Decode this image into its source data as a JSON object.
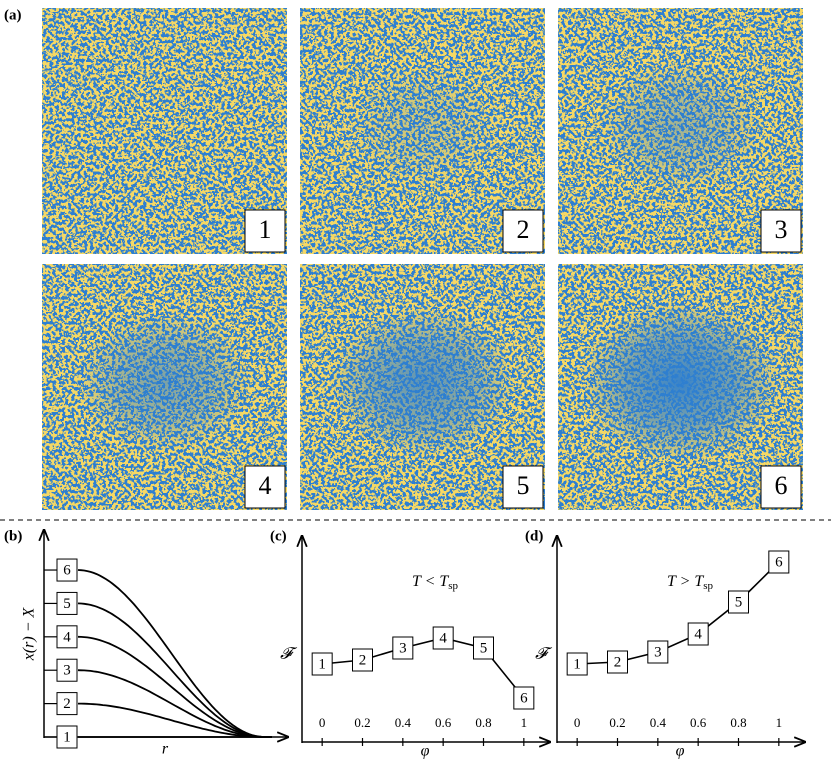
{
  "panel_a": {
    "label": "(a)",
    "frames": [
      "1",
      "2",
      "3",
      "4",
      "5",
      "6"
    ]
  },
  "chart_data": [
    {
      "type": "profile",
      "panel_label": "(b)",
      "x_label": "r",
      "y_label": "x(r) − X",
      "categories": [
        "1",
        "2",
        "3",
        "4",
        "5",
        "6"
      ],
      "values": [
        0,
        1,
        2,
        3,
        4,
        5
      ],
      "ylim": [
        0,
        5.6
      ],
      "color": "#000000"
    },
    {
      "type": "line",
      "panel_label": "(c)",
      "x_label": "φ",
      "y_label": "𝓕",
      "annotation": {
        "main": "T < T",
        "sub": "sp"
      },
      "x": [
        0,
        0.2,
        0.4,
        0.6,
        0.8,
        1
      ],
      "point_labels": [
        "1",
        "2",
        "3",
        "4",
        "5",
        "6"
      ],
      "values": [
        0.39,
        0.41,
        0.47,
        0.52,
        0.47,
        0.22
      ],
      "xlim": [
        -0.1,
        1.1
      ],
      "xticks": [
        0,
        0.2,
        0.4,
        0.6,
        0.8,
        1
      ],
      "ylim": [
        0,
        1
      ],
      "color": "#000000"
    },
    {
      "type": "line",
      "panel_label": "(d)",
      "x_label": "φ",
      "y_label": "𝓕",
      "annotation": {
        "main": "T > T",
        "sub": "sp"
      },
      "x": [
        0,
        0.2,
        0.4,
        0.6,
        0.8,
        1
      ],
      "point_labels": [
        "1",
        "2",
        "3",
        "4",
        "5",
        "6"
      ],
      "values": [
        0.39,
        0.4,
        0.45,
        0.54,
        0.7,
        0.9
      ],
      "xlim": [
        -0.1,
        1.1
      ],
      "xticks": [
        0,
        0.2,
        0.4,
        0.6,
        0.8,
        1
      ],
      "ylim": [
        0,
        1
      ],
      "color": "#000000"
    }
  ]
}
